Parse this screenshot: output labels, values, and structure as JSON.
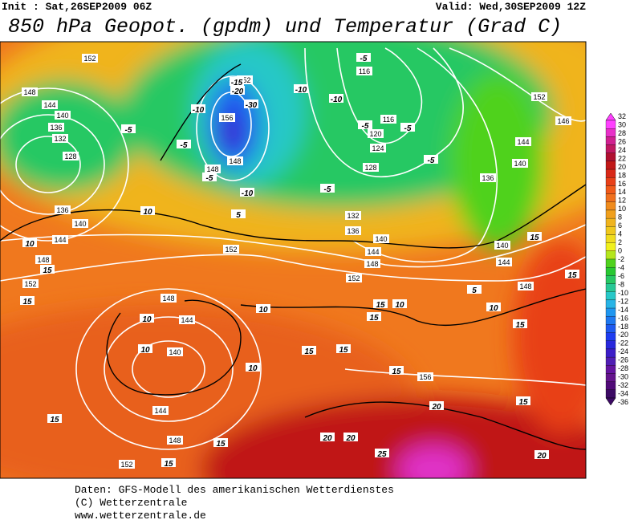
{
  "header": {
    "init": "Init : Sat,26SEP2009 06Z",
    "valid": "Valid: Wed,30SEP2009 12Z",
    "title": "850 hPa Geopot. (gpdm) und Temperatur (Grad C)"
  },
  "footer": [
    "Daten: GFS-Modell des amerikanischen Wetterdienstes",
    "(C) Wetterzentrale",
    "www.wetterzentrale.de"
  ],
  "colorbar": {
    "levels": [
      32,
      30,
      28,
      26,
      24,
      22,
      20,
      18,
      16,
      14,
      12,
      10,
      8,
      6,
      4,
      2,
      0,
      -2,
      -4,
      -6,
      -8,
      -10,
      -12,
      -14,
      -16,
      -18,
      -20,
      -22,
      -24,
      -26,
      -28,
      -30,
      -32,
      -34,
      -36
    ],
    "colors": [
      "#ff40ff",
      "#e830c8",
      "#d02090",
      "#c01860",
      "#b01030",
      "#c01818",
      "#d82818",
      "#e84018",
      "#f05a1a",
      "#f0701e",
      "#f08c1e",
      "#f0a01e",
      "#f0b41e",
      "#f0c81e",
      "#f0dc1e",
      "#f0f01e",
      "#b4e61e",
      "#50d21e",
      "#28c832",
      "#28c864",
      "#28c896",
      "#28c8c8",
      "#28b4e6",
      "#1e96f0",
      "#1e78f0",
      "#1e5af0",
      "#1e3cf0",
      "#2828dc",
      "#3c1ec8",
      "#501eb4",
      "#6414a0",
      "#64148c",
      "#500a78",
      "#3c0a64"
    ]
  },
  "geopotential_labels": [
    "152",
    "148",
    "144",
    "140",
    "136",
    "132",
    "128",
    "136",
    "140",
    "144",
    "148",
    "152",
    "152",
    "148",
    "144",
    "140",
    "144",
    "148",
    "152",
    "156",
    "148",
    "148",
    "152",
    "116",
    "116",
    "120",
    "124",
    "128",
    "132",
    "136",
    "140",
    "144",
    "148",
    "152",
    "136",
    "140",
    "144",
    "148",
    "152",
    "146",
    "144",
    "140",
    "156"
  ],
  "temperature_labels": [
    "-5",
    "-10",
    "-5",
    "-5",
    "-10",
    "-20",
    "-30",
    "-15",
    "-10",
    "-10",
    "-5",
    "-5",
    "-5",
    "-5",
    "-5",
    "5",
    "10",
    "10",
    "15",
    "15",
    "10",
    "10",
    "10",
    "10",
    "15",
    "15",
    "15",
    "15",
    "15",
    "20",
    "20",
    "20",
    "25",
    "20",
    "15",
    "15",
    "15",
    "15",
    "15",
    "15",
    "10",
    "5",
    "15",
    "10"
  ]
}
